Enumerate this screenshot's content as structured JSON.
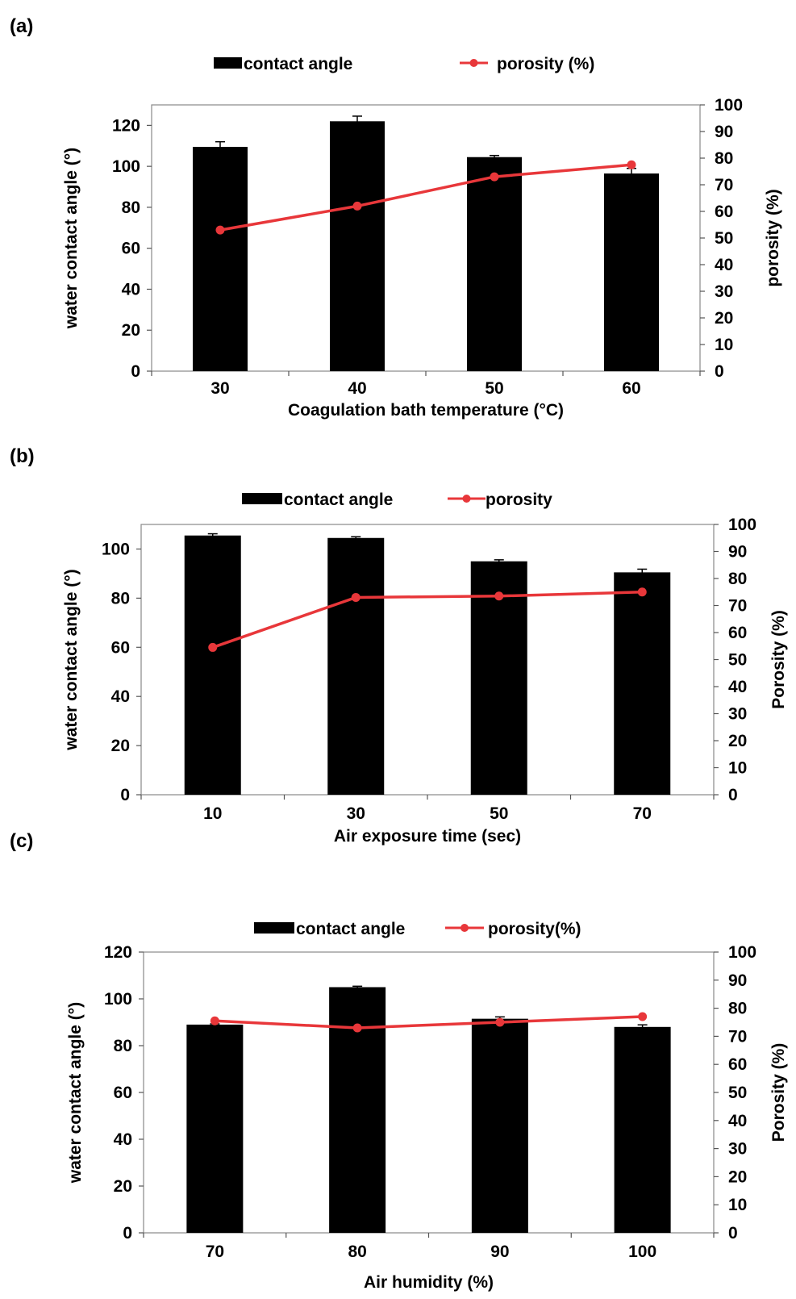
{
  "chart_data": [
    {
      "panel_label": "(a)",
      "type": "bar+line",
      "categories": [
        "30",
        "40",
        "50",
        "60"
      ],
      "xlabel": "Coagulation bath temperature (°C)",
      "ylabel": "water contact angle (°)",
      "y2label": "porosity (%)",
      "ylim": [
        0,
        130
      ],
      "yticks": [
        0,
        20,
        40,
        60,
        80,
        100,
        120
      ],
      "y2lim": [
        0,
        100
      ],
      "y2ticks": [
        0,
        10,
        20,
        30,
        40,
        50,
        60,
        70,
        80,
        90,
        100
      ],
      "legend": {
        "bar": "contact angle",
        "line": "porosity (%)",
        "placement": "top-center"
      },
      "series": [
        {
          "type": "bar",
          "axis": "left",
          "color": "#000000",
          "values": [
            109.5,
            122,
            104.5,
            96.5
          ],
          "errors": [
            2.5,
            2.5,
            0.8,
            2.5
          ]
        },
        {
          "type": "line",
          "axis": "right",
          "color": "#e8373a",
          "values": [
            53,
            62,
            73,
            77.5
          ]
        }
      ]
    },
    {
      "panel_label": "(b)",
      "type": "bar+line",
      "categories": [
        "10",
        "30",
        "50",
        "70"
      ],
      "xlabel": "Air exposure time (sec)",
      "ylabel": "water contact angle (°)",
      "y2label": "Porosity (%)",
      "ylim": [
        0,
        110
      ],
      "yticks": [
        0,
        20,
        40,
        60,
        80,
        100
      ],
      "y2lim": [
        0,
        100
      ],
      "y2ticks": [
        0,
        10,
        20,
        30,
        40,
        50,
        60,
        70,
        80,
        90,
        100
      ],
      "legend": {
        "bar": "contact angle",
        "line": "porosity",
        "placement": "top-center"
      },
      "series": [
        {
          "type": "bar",
          "axis": "left",
          "color": "#000000",
          "values": [
            105.5,
            104.5,
            95,
            90.5
          ],
          "errors": [
            0.7,
            0.5,
            0.6,
            1.3
          ]
        },
        {
          "type": "line",
          "axis": "right",
          "color": "#e8373a",
          "values": [
            54.5,
            73,
            73.5,
            75
          ]
        }
      ]
    },
    {
      "panel_label": "(c)",
      "type": "bar+line",
      "categories": [
        "70",
        "80",
        "90",
        "100"
      ],
      "xlabel": "Air humidity (%)",
      "ylabel": "water contact angle (°)",
      "y2label": "Porosity (%)",
      "ylim": [
        0,
        120
      ],
      "yticks": [
        0,
        20,
        40,
        60,
        80,
        100,
        120
      ],
      "y2lim": [
        0,
        100
      ],
      "y2ticks": [
        0,
        10,
        20,
        30,
        40,
        50,
        60,
        70,
        80,
        90,
        100
      ],
      "legend": {
        "bar": "contact angle",
        "line": "porosity(%)",
        "placement": "top-center"
      },
      "series": [
        {
          "type": "bar",
          "axis": "left",
          "color": "#000000",
          "values": [
            89,
            105,
            91.5,
            88
          ],
          "errors": [
            0.3,
            0.4,
            0.8,
            0.9
          ]
        },
        {
          "type": "line",
          "axis": "right",
          "color": "#e8373a",
          "values": [
            75.5,
            73,
            75,
            77
          ]
        }
      ]
    }
  ]
}
